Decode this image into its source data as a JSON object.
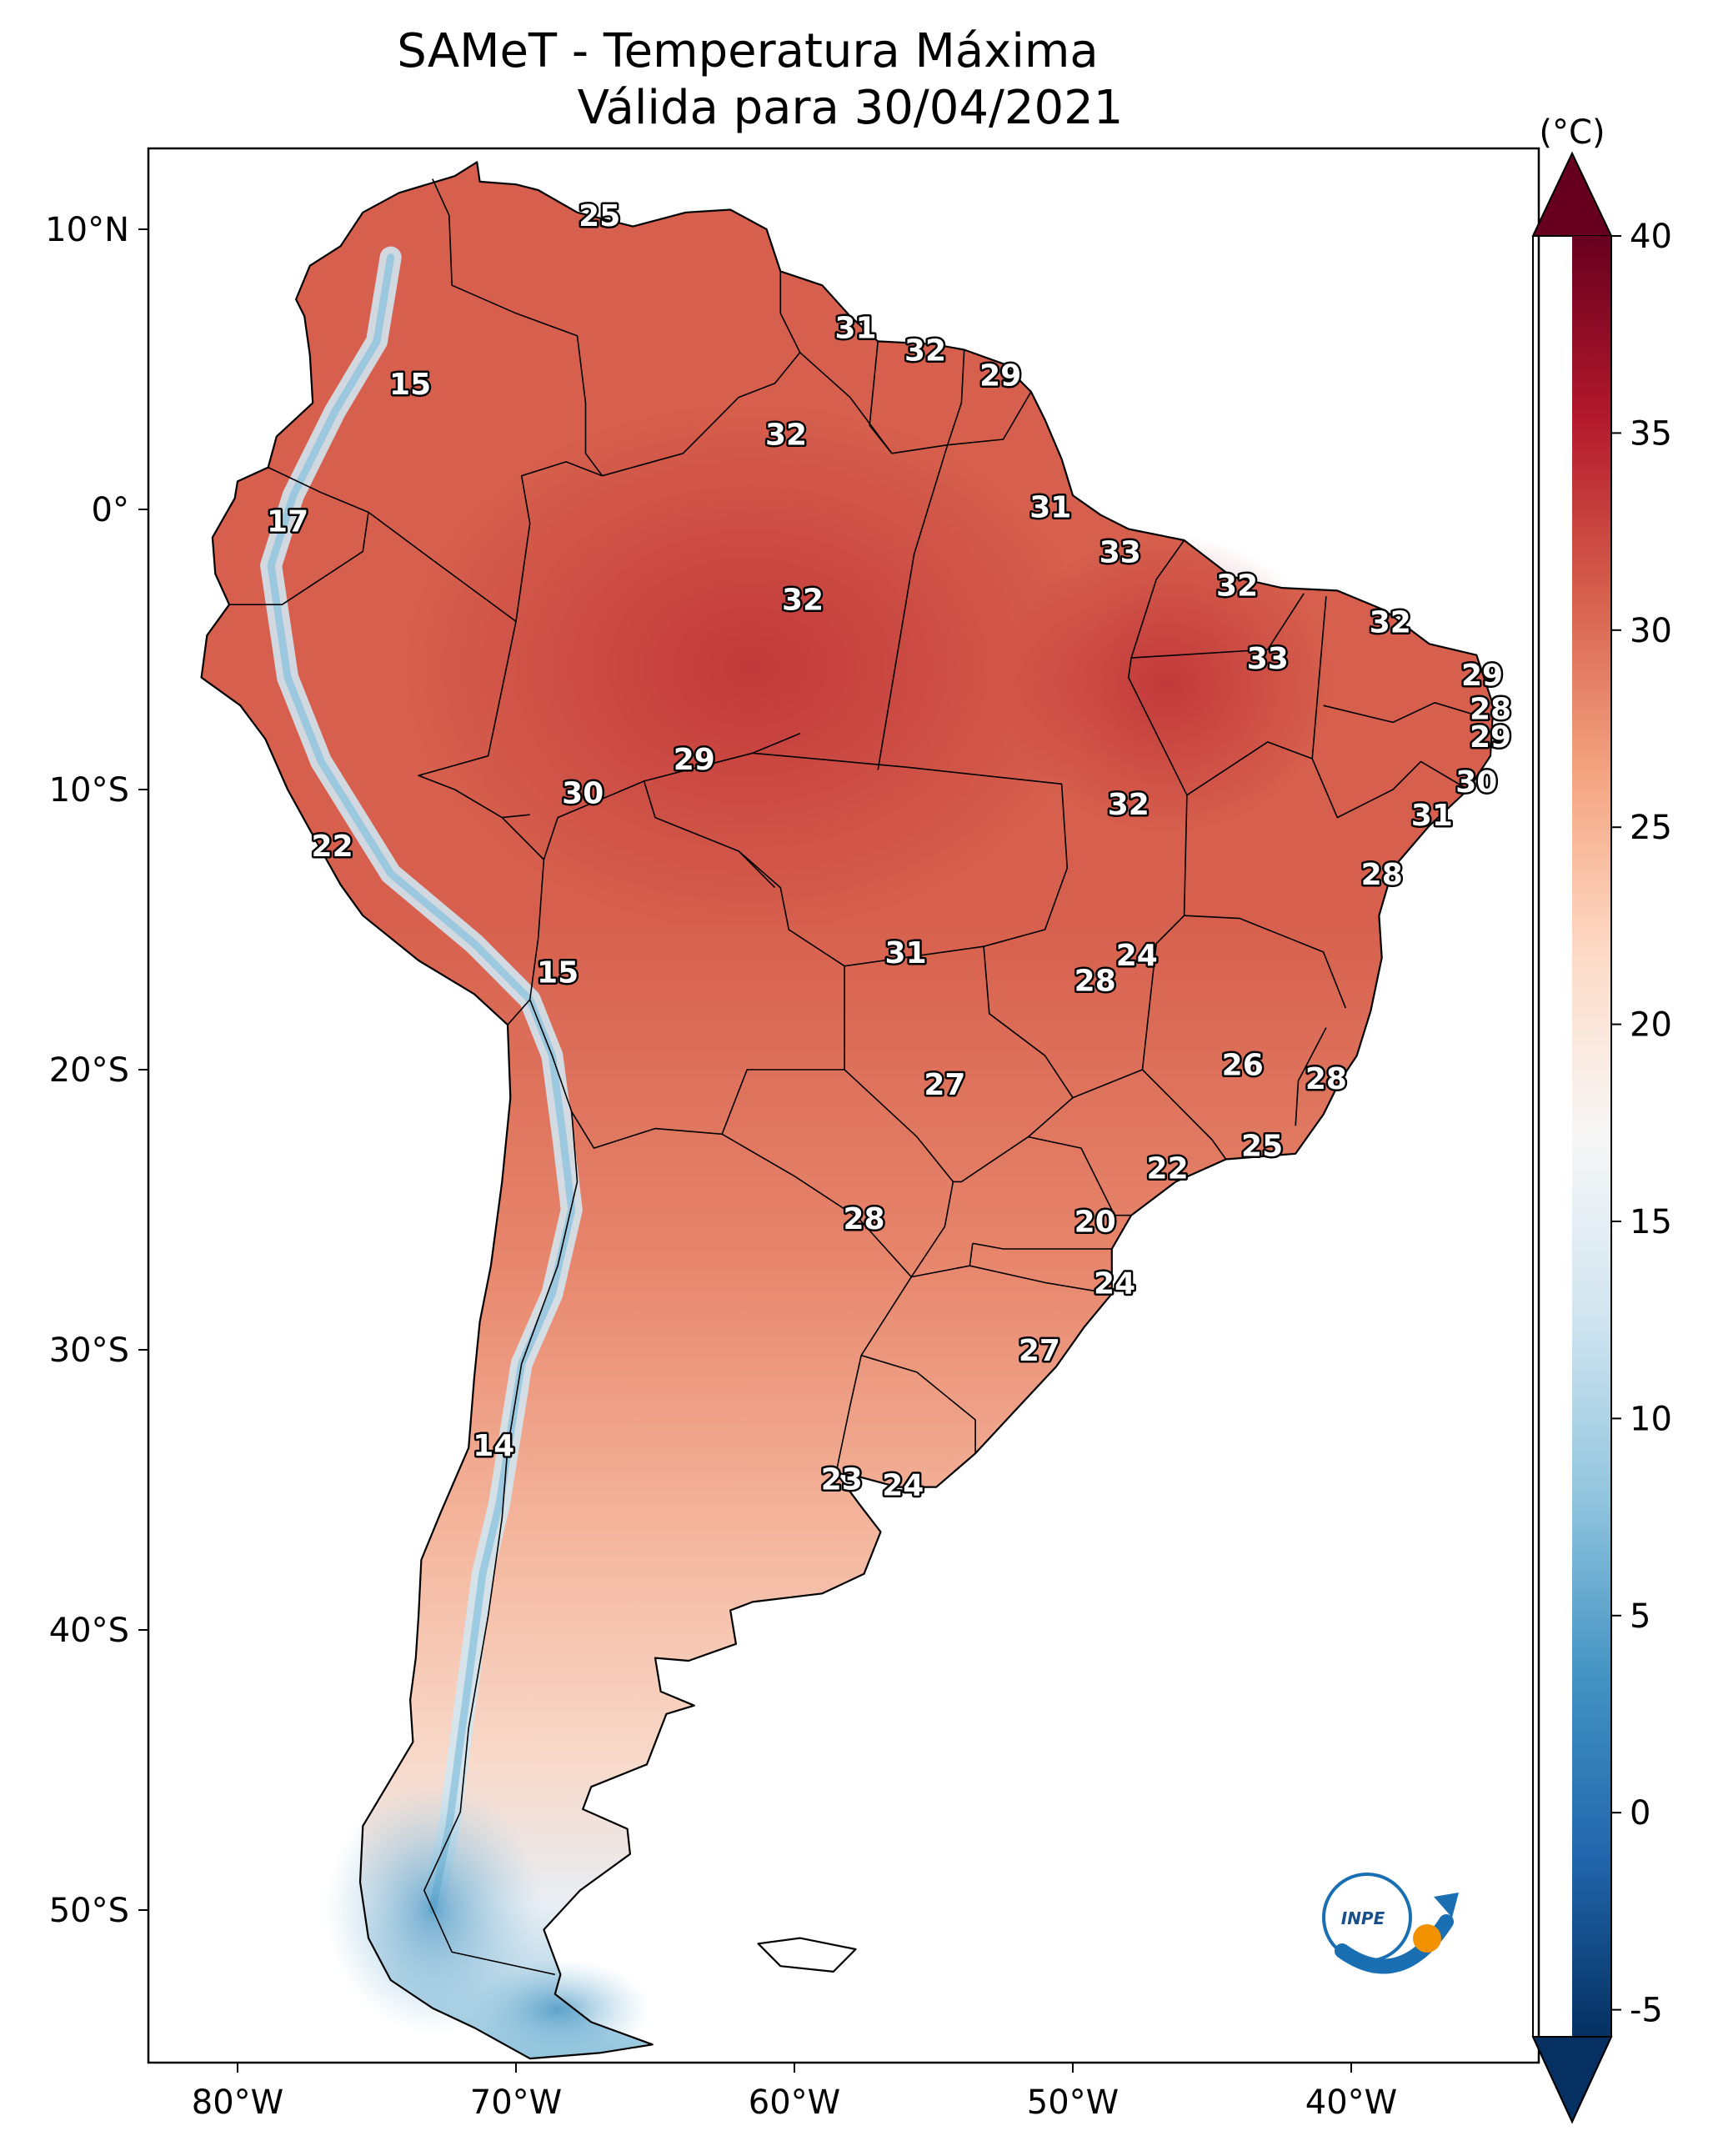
{
  "title": {
    "line1": "SAMeT - Temperatura Máxima",
    "line2": "Válida para 30/04/2021"
  },
  "axes": {
    "lon_ticks": [
      "80°W",
      "70°W",
      "60°W",
      "50°W",
      "40°W"
    ],
    "lat_ticks": [
      "10°N",
      "0°",
      "10°S",
      "20°S",
      "30°S",
      "40°S",
      "50°S"
    ]
  },
  "colorbar": {
    "unit": "(°C)",
    "ticks": [
      "40",
      "35",
      "30",
      "25",
      "20",
      "15",
      "10",
      "5",
      "0",
      "-5"
    ],
    "colors": [
      "#053061",
      "#2166ac",
      "#4393c3",
      "#92c5de",
      "#d1e5f0",
      "#f7f7f7",
      "#fddbc7",
      "#f4a582",
      "#d6604d",
      "#b2182b",
      "#67001f"
    ]
  },
  "map_labels": [
    {
      "text": "25",
      "lon": -67,
      "lat": 10.5
    },
    {
      "text": "31",
      "lon": -57.8,
      "lat": 6.5
    },
    {
      "text": "32",
      "lon": -55.3,
      "lat": 5.7
    },
    {
      "text": "29",
      "lon": -52.6,
      "lat": 4.8
    },
    {
      "text": "15",
      "lon": -73.8,
      "lat": 4.5
    },
    {
      "text": "32",
      "lon": -60.3,
      "lat": 2.7
    },
    {
      "text": "17",
      "lon": -78.2,
      "lat": -0.4
    },
    {
      "text": "31",
      "lon": -50.8,
      "lat": 0.1
    },
    {
      "text": "33",
      "lon": -48.3,
      "lat": -1.5
    },
    {
      "text": "32",
      "lon": -59.7,
      "lat": -3.2
    },
    {
      "text": "32",
      "lon": -44.1,
      "lat": -2.7
    },
    {
      "text": "32",
      "lon": -38.6,
      "lat": -4.0
    },
    {
      "text": "33",
      "lon": -43.0,
      "lat": -5.3
    },
    {
      "text": "29",
      "lon": -35.3,
      "lat": -5.9
    },
    {
      "text": "28",
      "lon": -35.0,
      "lat": -7.1
    },
    {
      "text": "29",
      "lon": -35.0,
      "lat": -8.1
    },
    {
      "text": "29",
      "lon": -63.6,
      "lat": -8.9
    },
    {
      "text": "30",
      "lon": -67.6,
      "lat": -10.1
    },
    {
      "text": "32",
      "lon": -48.0,
      "lat": -10.5
    },
    {
      "text": "30",
      "lon": -35.5,
      "lat": -9.7
    },
    {
      "text": "31",
      "lon": -37.1,
      "lat": -10.9
    },
    {
      "text": "22",
      "lon": -76.6,
      "lat": -12.0
    },
    {
      "text": "28",
      "lon": -38.9,
      "lat": -13.0
    },
    {
      "text": "24",
      "lon": -47.7,
      "lat": -15.9
    },
    {
      "text": "31",
      "lon": -56.0,
      "lat": -15.8
    },
    {
      "text": "28",
      "lon": -49.2,
      "lat": -16.8
    },
    {
      "text": "15",
      "lon": -68.5,
      "lat": -16.5
    },
    {
      "text": "26",
      "lon": -43.9,
      "lat": -19.8
    },
    {
      "text": "28",
      "lon": -40.9,
      "lat": -20.3
    },
    {
      "text": "27",
      "lon": -54.6,
      "lat": -20.5
    },
    {
      "text": "25",
      "lon": -43.2,
      "lat": -22.7
    },
    {
      "text": "22",
      "lon": -46.6,
      "lat": -23.5
    },
    {
      "text": "20",
      "lon": -49.2,
      "lat": -25.4
    },
    {
      "text": "28",
      "lon": -57.5,
      "lat": -25.3
    },
    {
      "text": "24",
      "lon": -48.5,
      "lat": -27.6
    },
    {
      "text": "27",
      "lon": -51.2,
      "lat": -30.0
    },
    {
      "text": "14",
      "lon": -70.8,
      "lat": -33.4
    },
    {
      "text": "23",
      "lon": -58.3,
      "lat": -34.6
    },
    {
      "text": "24",
      "lon": -56.1,
      "lat": -34.8
    }
  ],
  "logo": {
    "text": "INPE"
  }
}
